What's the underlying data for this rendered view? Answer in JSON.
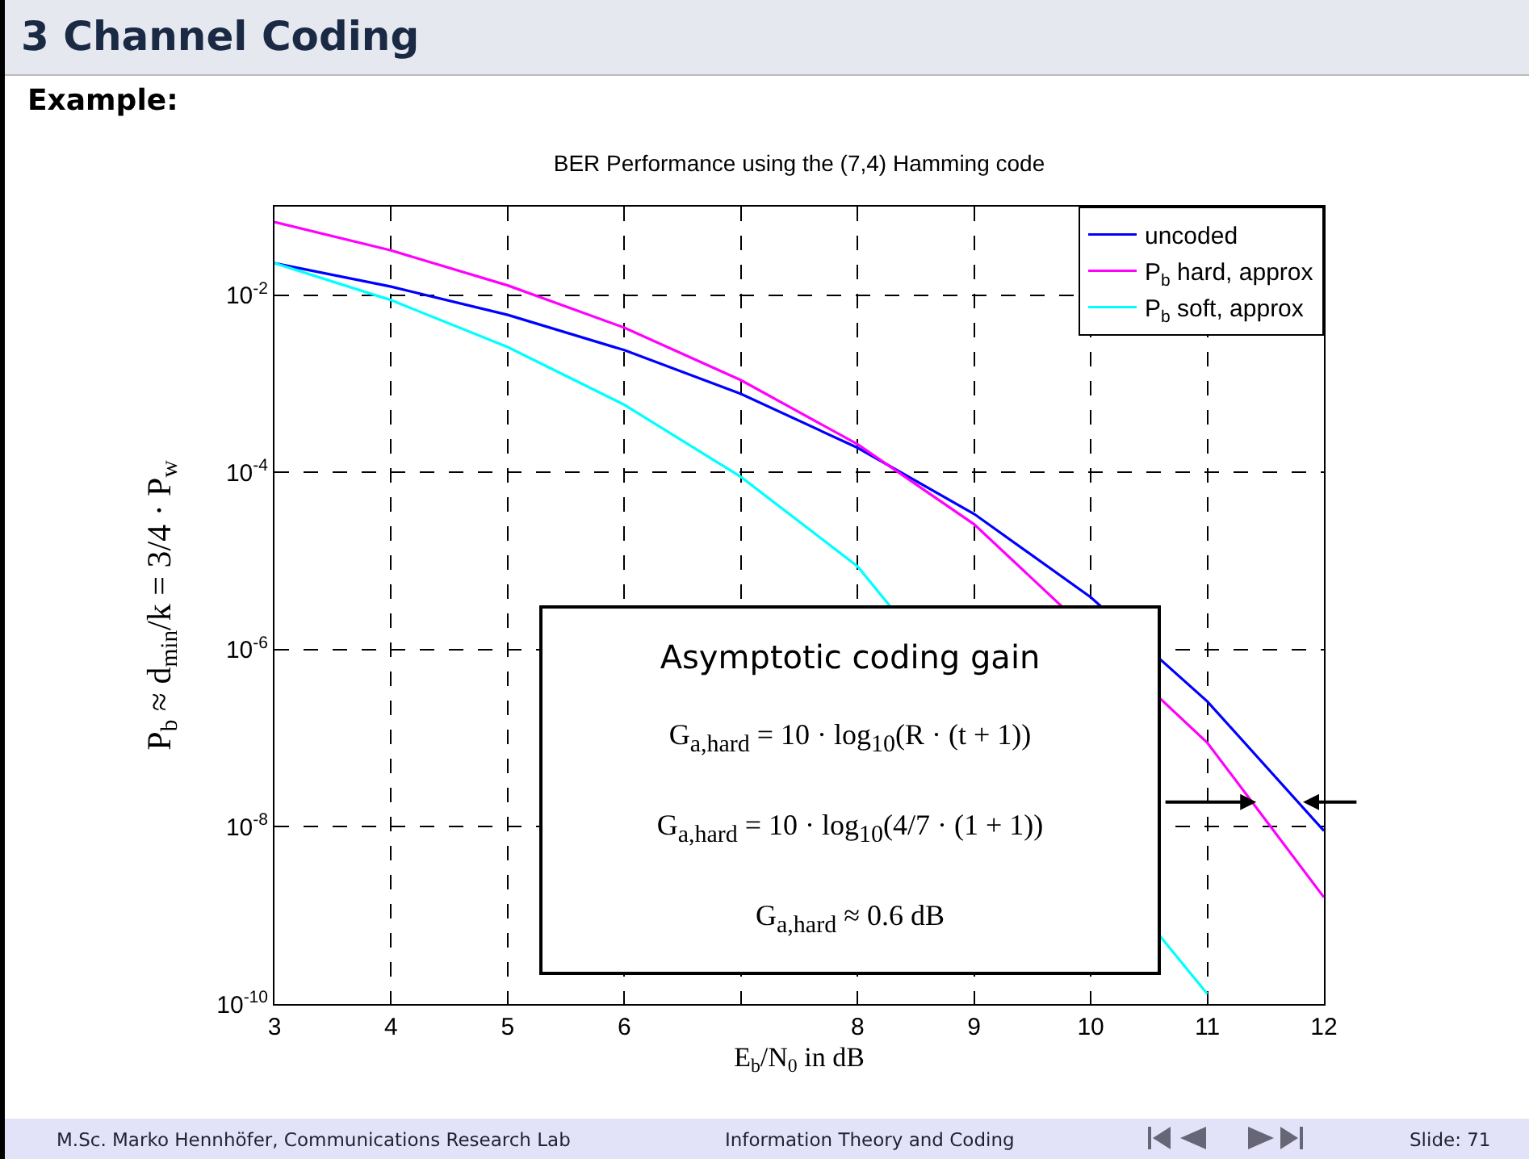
{
  "chart_data": {
    "type": "line",
    "title": "3 Channel Coding",
    "subtitle": "BER Performance using the (7,4) Hamming code",
    "xlabel": "E$_{b}$/N$_{0}$ in dB",
    "ylabel": "P$_{b}$ ≈ d$_{min}$/k = 3/4 · P$_{w}$",
    "x": [
      3,
      4,
      5,
      6,
      7,
      8,
      9,
      10,
      11,
      12
    ],
    "series": [
      {
        "name": "uncoded",
        "color": "#0000ff",
        "values": [
          0.023,
          0.0125,
          0.006,
          0.0024,
          0.00077,
          0.00019,
          3.4e-05,
          3.9e-06,
          2.6e-07,
          9e-09
        ]
      },
      {
        "name": "P$_{b}$ hard, approx",
        "color": "#ff00ff",
        "values": [
          0.067,
          0.032,
          0.0129,
          0.0043,
          0.0011,
          0.000208,
          2.6e-05,
          null,
          8.9e-08,
          1.6e-09
        ]
      },
      {
        "name": "P$_{b}$ soft, approx",
        "color": "#00ffff",
        "values": [
          0.023,
          0.0088,
          0.0026,
          0.00058,
          8.9e-05,
          8.7e-06,
          null,
          null,
          1.3e-10,
          null
        ]
      }
    ],
    "xlim": [
      3,
      12
    ],
    "xticks": [
      3,
      4,
      5,
      6,
      {
        "value": 7,
        "label": null
      },
      8,
      9,
      10,
      11,
      12
    ],
    "ylim": [
      1e-10,
      0.1
    ],
    "yticks": [
      {
        "value": 1e-10,
        "label": "10$^{-10}$"
      },
      {
        "value": 1e-08,
        "label": "10$^{-8}$"
      },
      {
        "value": 1e-06,
        "label": "10$^{-6}$"
      },
      {
        "value": 0.0001,
        "label": "10$^{-4}$"
      },
      {
        "value": 0.01,
        "label": "10$^{-2}$"
      }
    ],
    "log": "y",
    "grid": true,
    "legend": "top right",
    "line_style": "solid",
    "marker": "none",
    "annotations": [
      "Example:",
      "Asymptotic coding gain",
      "G$_{a,hard}$ = 10 · log$_{10}$(R · (t + 1))",
      "G$_{a,hard}$ = 10 · log$_{10}$(4/7 · (1 + 1))",
      "G$_{a,hard}$ ≈ 0.6 dB",
      "M.Sc. Marko Hennhöfer, Communications Research Lab",
      "Information Theory and Coding",
      "Slide: 71"
    ]
  }
}
